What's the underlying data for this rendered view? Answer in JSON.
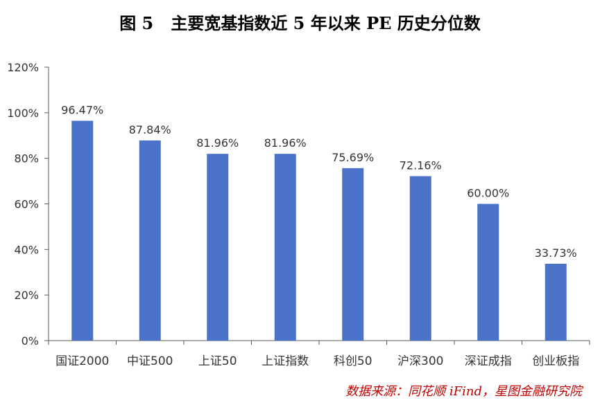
{
  "title": "图 5   主要宽基指数近 5 年以来 PE 历史分位数",
  "source": "数据来源：同花顺 iFind，星图金融研究院",
  "colors": {
    "bar": "#4a72c9",
    "axis": "#595959",
    "source": "#c00000"
  },
  "chart_data": {
    "type": "bar",
    "categories": [
      "国证2000",
      "中证500",
      "上证50",
      "上证指数",
      "科创50",
      "沪深300",
      "深证成指",
      "创业板指"
    ],
    "values": [
      96.47,
      87.84,
      81.96,
      81.96,
      75.69,
      72.16,
      60.0,
      33.73
    ],
    "data_labels": [
      "96.47%",
      "87.84%",
      "81.96%",
      "81.96%",
      "75.69%",
      "72.16%",
      "60.00%",
      "33.73%"
    ],
    "ylim": [
      0,
      120
    ],
    "yticks": [
      0,
      20,
      40,
      60,
      80,
      100,
      120
    ],
    "ytick_labels": [
      "0%",
      "20%",
      "40%",
      "60%",
      "80%",
      "100%",
      "120%"
    ],
    "grid": false,
    "legend": "none"
  }
}
